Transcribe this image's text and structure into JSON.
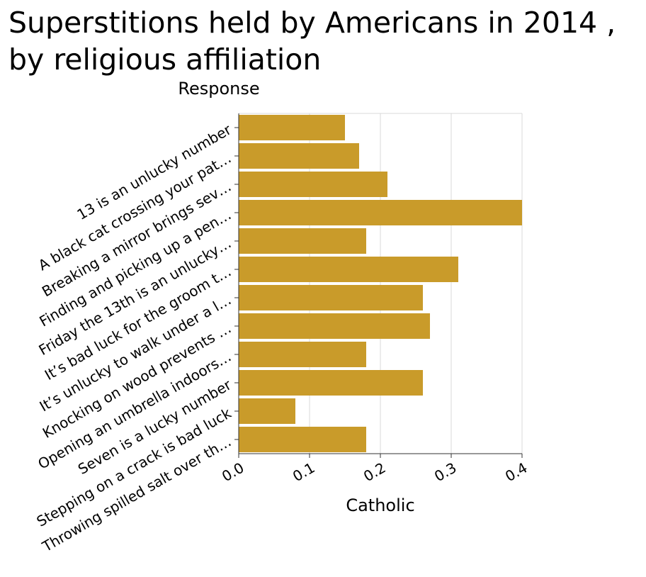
{
  "chart_data": {
    "type": "bar",
    "orientation": "horizontal",
    "title": "Superstitions held by Americans in 2014 , by religious affiliation",
    "ylabel": "Response",
    "xlabel": "Catholic",
    "xlim": [
      0,
      0.4
    ],
    "xticks": [
      "0.0",
      "0.1",
      "0.2",
      "0.3",
      "0.4"
    ],
    "grid": "vertical",
    "bar_color": "#c99b2a",
    "categories": [
      "13 is an unlucky number",
      "A black cat crossing your pat…",
      "Breaking a mirror brings sev…",
      "Finding and picking up a pen…",
      "Friday the 13th is an unlucky…",
      "It’s bad luck for the groom t…",
      "It’s unlucky to walk under a l…",
      "Knocking on wood prevents …",
      "Opening an umbrella indoors…",
      "Seven is a lucky number",
      "Stepping on a crack is bad luck",
      "Throwing spilled salt over th…"
    ],
    "values": [
      0.15,
      0.17,
      0.21,
      0.4,
      0.18,
      0.31,
      0.26,
      0.27,
      0.18,
      0.26,
      0.08,
      0.18
    ]
  }
}
